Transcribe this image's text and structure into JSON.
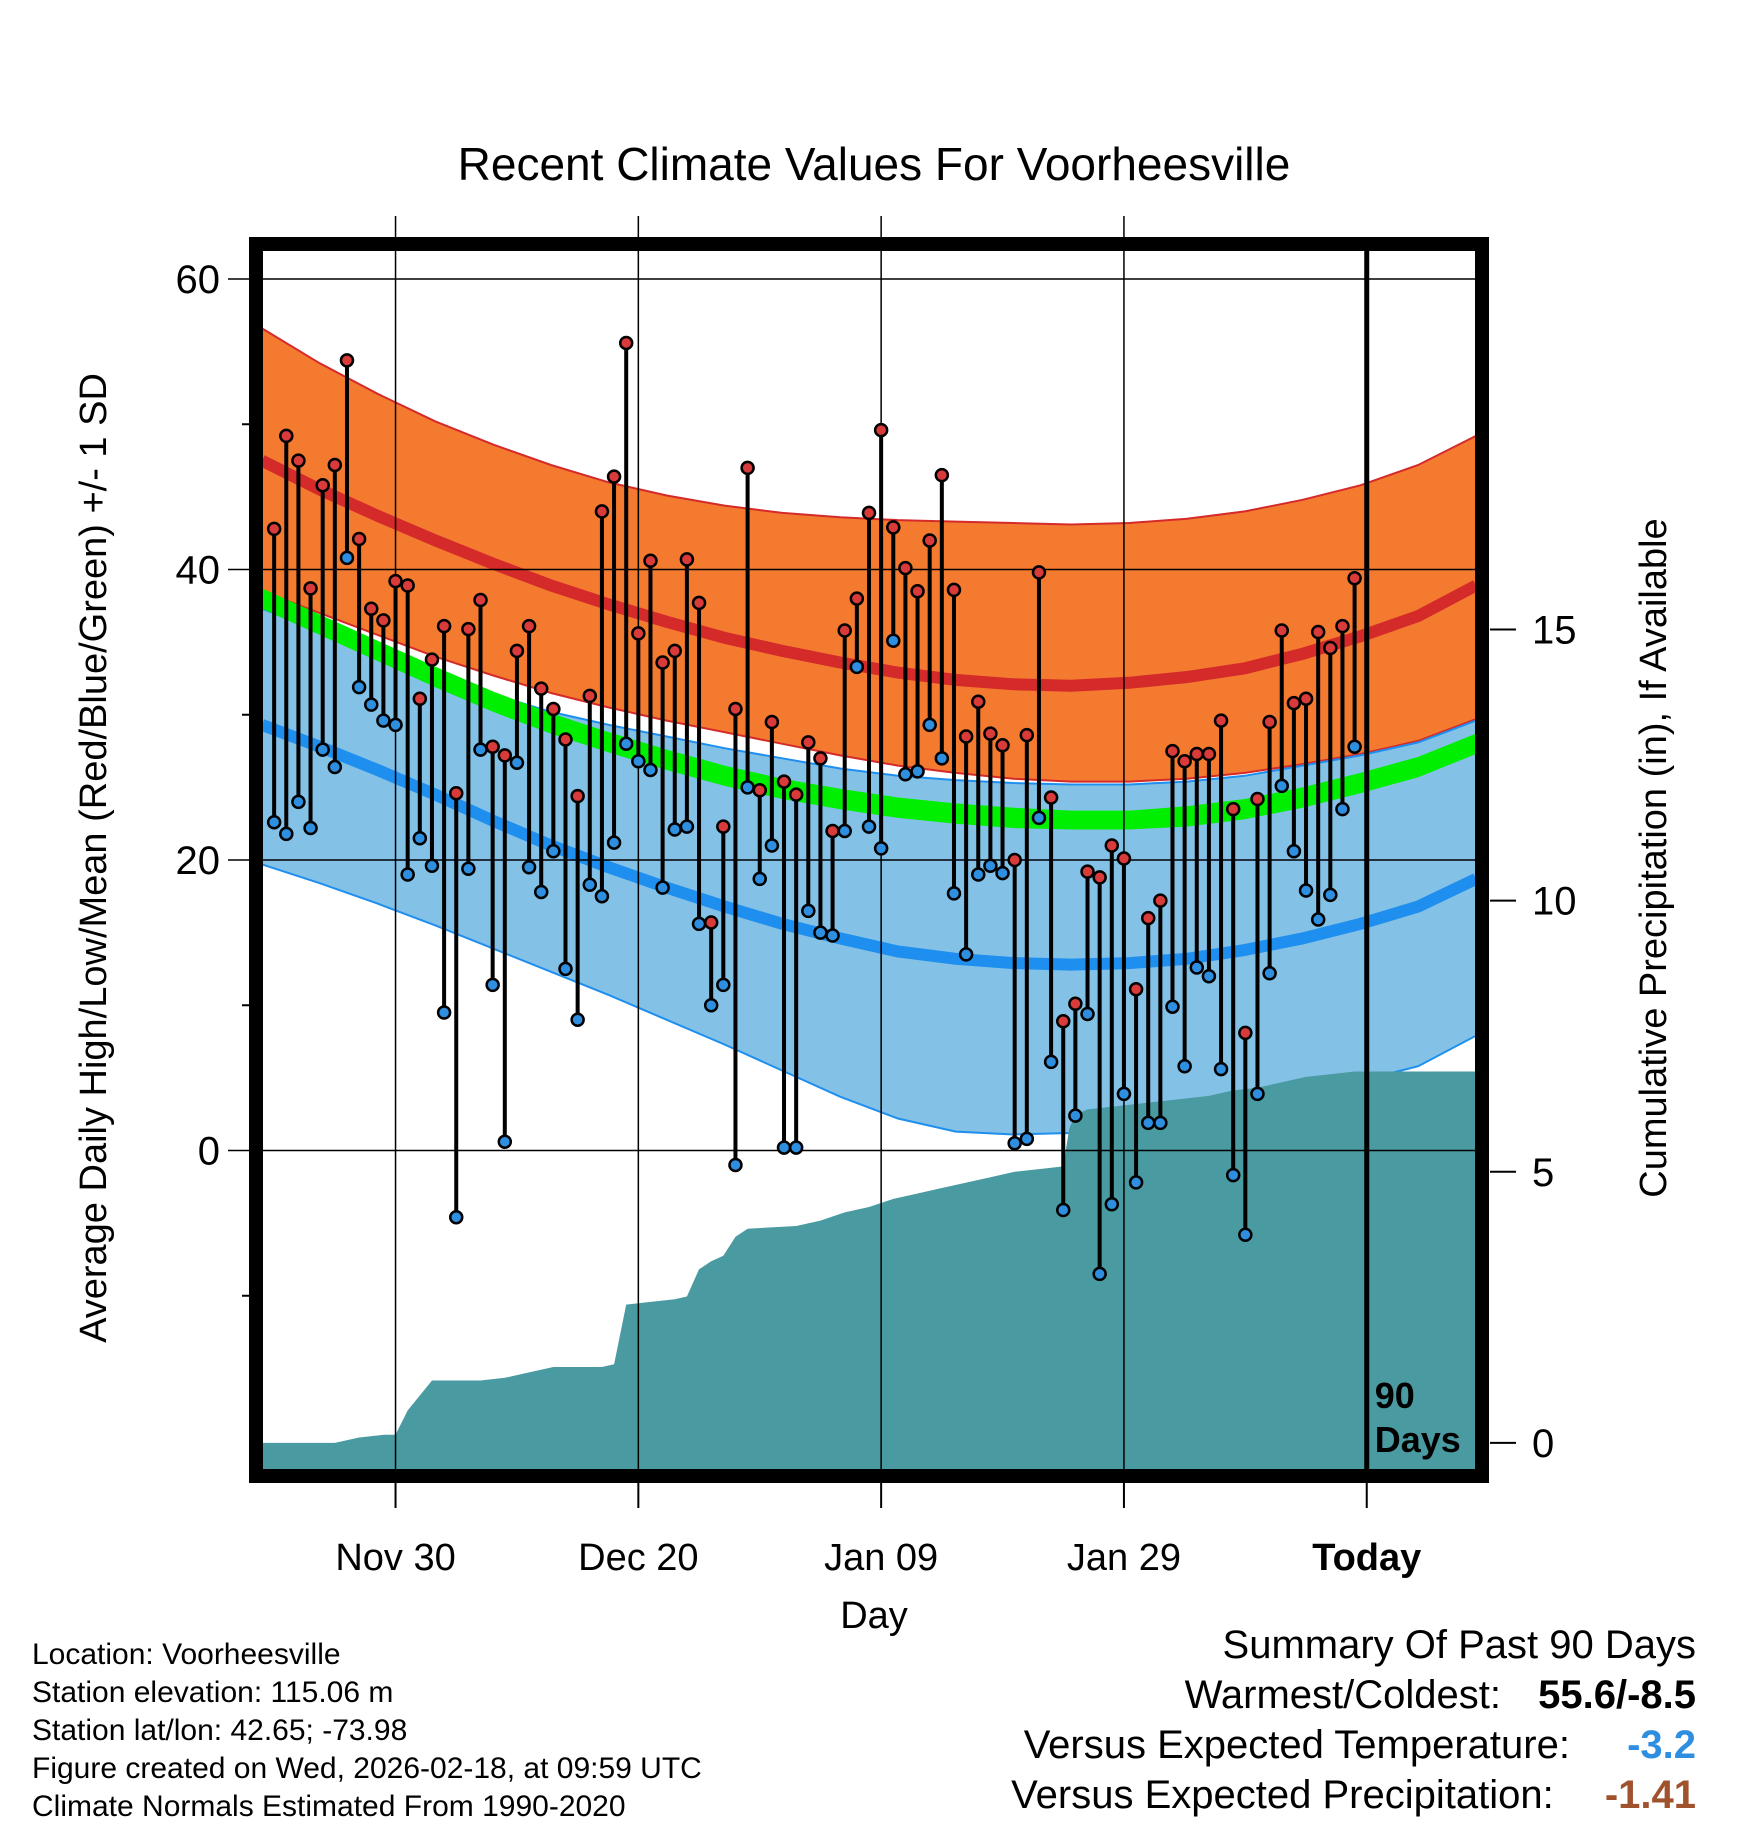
{
  "chart_data": {
    "type": "line",
    "title": "Recent Climate Values For Voorheesville",
    "xlabel": "Day",
    "ylabel": "Average Daily High/Low/Mean (Red/Blue/Green) +/- 1 SD",
    "y2label": "Cumulative Precipitation (in), If Available",
    "ylim": [
      -22,
      62
    ],
    "y_ticks": [
      "0",
      "20",
      "40",
      "60"
    ],
    "y_tick_values": [
      0,
      20,
      40,
      60
    ],
    "y_minor_ticks": [
      -10,
      10,
      30,
      50
    ],
    "y2lim": [
      -0.5,
      22
    ],
    "y2_ticks": [
      "0",
      "5",
      "10",
      "15"
    ],
    "y2_tick_values": [
      0,
      5,
      10,
      15
    ],
    "xlim": [
      0,
      100
    ],
    "x_ticks": [
      "Nov 30",
      "Dec 20",
      "Jan 09",
      "Jan 29",
      "Today"
    ],
    "x_tick_values": [
      11,
      31,
      51,
      71,
      91
    ],
    "today_index": 91,
    "period_label": [
      "90",
      "Days"
    ],
    "normals": {
      "high_mean": [
        47.5,
        45.5,
        43.7,
        42.0,
        40.4,
        38.9,
        37.6,
        36.4,
        35.3,
        34.4,
        33.6,
        32.9,
        32.4,
        32.1,
        32.0,
        32.2,
        32.6,
        33.2,
        34.2,
        35.4,
        36.8,
        38.9
      ],
      "high_upper": [
        56.6,
        54.2,
        52.1,
        50.2,
        48.6,
        47.2,
        46.0,
        45.1,
        44.4,
        43.9,
        43.6,
        43.4,
        43.3,
        43.2,
        43.1,
        43.2,
        43.5,
        44.0,
        44.8,
        45.8,
        47.2,
        49.2
      ],
      "high_lower": [
        38.5,
        37.0,
        35.5,
        34.0,
        32.7,
        31.5,
        30.5,
        29.6,
        28.8,
        28.0,
        27.2,
        26.5,
        26.0,
        25.6,
        25.4,
        25.4,
        25.6,
        26.0,
        26.6,
        27.3,
        28.2,
        29.7
      ],
      "low_mean": [
        29.3,
        27.8,
        26.2,
        24.5,
        22.7,
        21.0,
        19.5,
        18.1,
        16.8,
        15.6,
        14.6,
        13.7,
        13.2,
        12.9,
        12.8,
        12.9,
        13.2,
        13.8,
        14.6,
        15.6,
        16.8,
        18.7
      ],
      "low_upper": [
        37.3,
        35.8,
        34.3,
        32.8,
        31.4,
        30.2,
        29.3,
        28.5,
        27.7,
        27.0,
        26.3,
        25.8,
        25.5,
        25.3,
        25.2,
        25.2,
        25.4,
        25.8,
        26.5,
        27.2,
        28.1,
        29.6
      ],
      "low_lower": [
        19.7,
        18.4,
        17.0,
        15.5,
        13.9,
        12.3,
        10.7,
        9.0,
        7.3,
        5.5,
        3.7,
        2.2,
        1.3,
        1.1,
        1.2,
        1.6,
        2.2,
        3.0,
        3.8,
        4.8,
        5.8,
        7.9
      ],
      "mean_upper": [
        38.7,
        36.9,
        35.1,
        33.3,
        31.6,
        30.1,
        28.8,
        27.6,
        26.5,
        25.6,
        24.9,
        24.3,
        23.9,
        23.6,
        23.4,
        23.4,
        23.7,
        24.2,
        25.0,
        26.0,
        27.1,
        28.7
      ],
      "mean_lower": [
        37.3,
        35.5,
        33.7,
        31.9,
        30.2,
        28.7,
        27.4,
        26.2,
        25.1,
        24.2,
        23.5,
        22.9,
        22.5,
        22.2,
        22.1,
        22.1,
        22.3,
        22.8,
        23.6,
        24.6,
        25.7,
        27.3
      ]
    },
    "series": [
      {
        "name": "High",
        "values": [
          42.8,
          49.2,
          47.5,
          38.7,
          45.8,
          47.2,
          54.4,
          42.1,
          37.3,
          36.5,
          39.2,
          38.9,
          31.1,
          33.8,
          36.1,
          24.6,
          35.9,
          37.9,
          27.8,
          27.2,
          34.4,
          36.1,
          31.8,
          30.4,
          28.3,
          24.4,
          31.3,
          44.0,
          46.4,
          55.6,
          35.6,
          40.6,
          33.6,
          34.4,
          40.7,
          37.7,
          15.7,
          22.3,
          30.4,
          47.0,
          24.8,
          29.5,
          25.4,
          24.5,
          28.1,
          27.0,
          22.0,
          35.8,
          38.0,
          43.9,
          49.6,
          42.9,
          40.1,
          38.5,
          42.0,
          46.5,
          38.6,
          28.5,
          30.9,
          28.7,
          27.9,
          20.0,
          28.6,
          39.8,
          24.3,
          8.9,
          10.1,
          19.2,
          18.8,
          21.0,
          20.1,
          11.1,
          16.0,
          17.2,
          27.5,
          26.8,
          27.3,
          27.3,
          29.6,
          23.5,
          8.1,
          24.2,
          29.5,
          35.8,
          30.8,
          31.1,
          35.7,
          34.6,
          36.1,
          39.4
        ],
        "color": "#d93a3a"
      },
      {
        "name": "Low",
        "values": [
          22.6,
          21.8,
          24.0,
          22.2,
          27.6,
          26.4,
          40.8,
          31.9,
          30.7,
          29.6,
          29.3,
          19.0,
          21.5,
          19.6,
          9.5,
          -4.6,
          19.4,
          27.6,
          11.4,
          0.6,
          26.7,
          19.5,
          17.8,
          20.6,
          12.5,
          9.0,
          18.3,
          17.5,
          21.2,
          28.0,
          26.8,
          26.2,
          18.1,
          22.1,
          22.3,
          15.6,
          10.0,
          11.4,
          -1.0,
          25.0,
          18.7,
          21.0,
          0.2,
          0.2,
          16.5,
          15.0,
          14.8,
          22.0,
          33.3,
          22.3,
          20.8,
          35.1,
          25.9,
          26.1,
          29.3,
          27.0,
          17.7,
          13.5,
          19.0,
          19.6,
          19.1,
          0.5,
          0.8,
          22.9,
          6.1,
          -4.1,
          2.4,
          9.4,
          -8.5,
          -3.7,
          3.9,
          -2.2,
          1.9,
          1.9,
          9.9,
          5.8,
          12.6,
          12.0,
          5.6,
          -1.7,
          -5.8,
          3.9,
          12.2,
          25.1,
          20.6,
          17.9,
          15.9,
          17.6,
          23.5,
          27.8
        ],
        "color": "#2e8ee0"
      }
    ],
    "precip_x": [
      0,
      6,
      8,
      10,
      11,
      12,
      14,
      18,
      20,
      22,
      24,
      28,
      29,
      30,
      32,
      34,
      35,
      36,
      37,
      38,
      39,
      40,
      44,
      46,
      48,
      50,
      52,
      54,
      56,
      58,
      60,
      62,
      64,
      66,
      66.5,
      67,
      68,
      70,
      72,
      74,
      76,
      78,
      80,
      82,
      84,
      86,
      88,
      90,
      100
    ],
    "precip_y": [
      0,
      0,
      0.1,
      0.15,
      0.15,
      0.6,
      1.15,
      1.15,
      1.2,
      1.3,
      1.4,
      1.4,
      1.45,
      2.55,
      2.6,
      2.65,
      2.7,
      3.2,
      3.35,
      3.45,
      3.8,
      3.95,
      4.0,
      4.1,
      4.25,
      4.35,
      4.5,
      4.6,
      4.7,
      4.8,
      4.9,
      5.0,
      5.05,
      5.1,
      5.8,
      6.05,
      6.15,
      6.2,
      6.25,
      6.3,
      6.35,
      6.4,
      6.5,
      6.55,
      6.65,
      6.75,
      6.8,
      6.85,
      6.85
    ]
  },
  "location": {
    "line1": "Location: Voorheesville",
    "line2": "Station elevation: 115.06 m",
    "line3": "Station lat/lon: 42.65; -73.98",
    "line4": "Figure created on Wed, 2026-02-18, at 09:59 UTC",
    "line5": "Climate Normals Estimated From 1990-2020"
  },
  "summary": {
    "title": "Summary Of Past 90 Days",
    "warmest_label": "Warmest/Coldest:",
    "warmest_value": "55.6/-8.5",
    "temp_label": "Versus Expected Temperature:",
    "temp_value": "-3.2",
    "precip_label": "Versus Expected Precipitation:",
    "precip_value": "-1.41"
  },
  "colors": {
    "high_band": "#f47a30",
    "high_line": "#d42a2a",
    "low_band": "#84c1e6",
    "low_line": "#1e8fee",
    "mean_band": "#00ee00",
    "overlap": "#9a1414",
    "precip": "#4a9aa2",
    "temp_value": "#2e8ee0",
    "precip_value": "#a0522d"
  }
}
